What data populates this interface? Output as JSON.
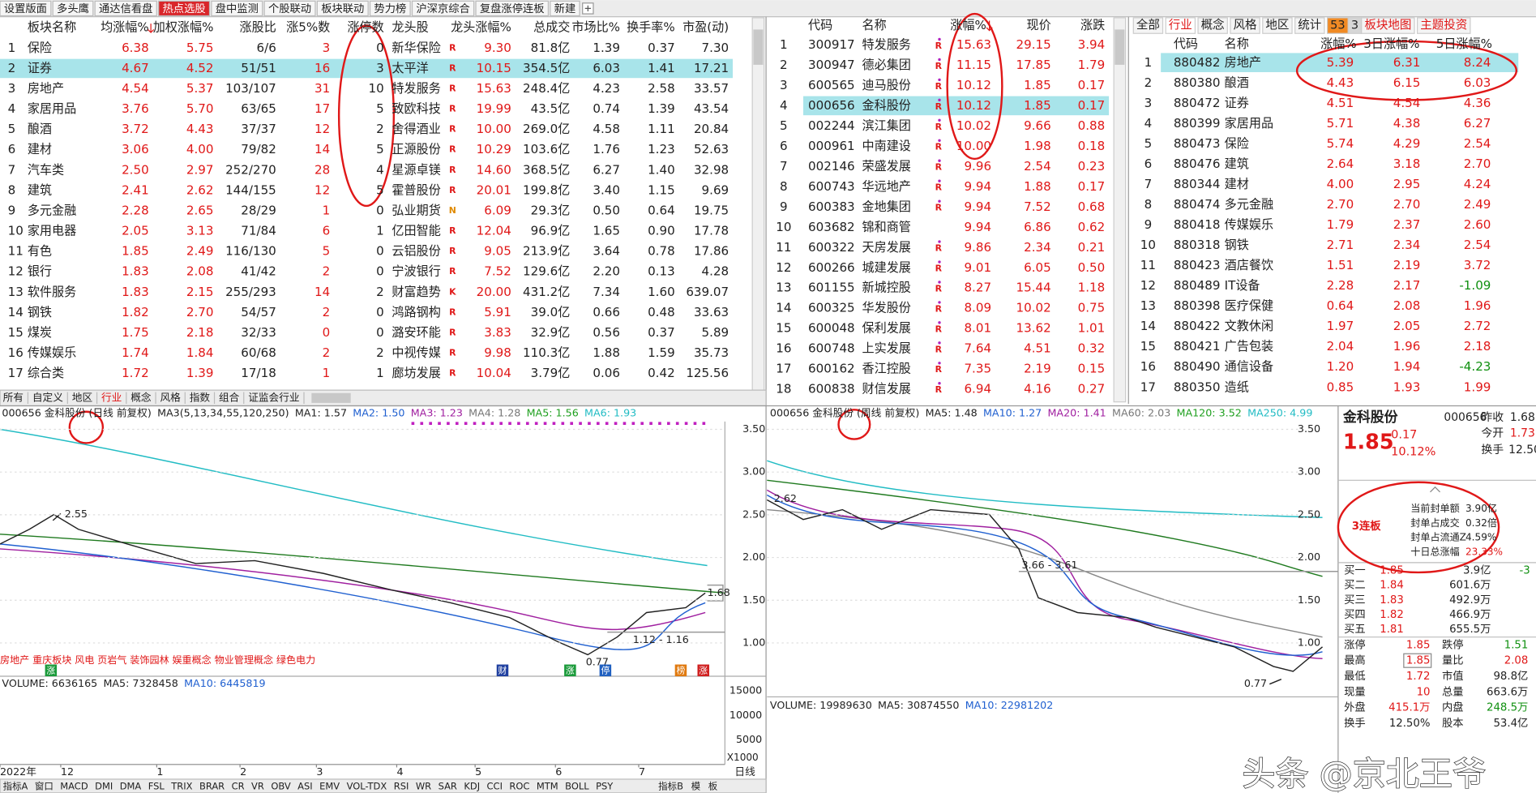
{
  "tabs": [
    {
      "label": "设置版面"
    },
    {
      "label": "多头鹰"
    },
    {
      "label": "通达信看盘"
    },
    {
      "label": "热点选股",
      "active": true
    },
    {
      "label": "盘中监测"
    },
    {
      "label": "个股联动"
    },
    {
      "label": "板块联动"
    },
    {
      "label": "势力榜"
    },
    {
      "label": "沪深京综合"
    },
    {
      "label": "复盘涨停连板"
    },
    {
      "label": "新建"
    }
  ],
  "left_table": {
    "headers": [
      "板块名称",
      "均涨幅%",
      "加权涨幅%",
      "涨股比",
      "涨5%数",
      "涨停数",
      "龙头股",
      "龙头涨幅%",
      "总成交",
      "市场比%",
      "换手率%",
      "市盈(动)"
    ],
    "rows": [
      [
        "1",
        "保险",
        "6.38",
        "5.75",
        "6/6",
        "3",
        "0",
        "新华保险",
        "R",
        "9.30",
        "81.8亿",
        "1.39",
        "0.37",
        "7.30"
      ],
      [
        "2",
        "证券",
        "4.67",
        "4.52",
        "51/51",
        "16",
        "3",
        "太平洋",
        "R",
        "10.15",
        "354.5亿",
        "6.03",
        "1.41",
        "17.21"
      ],
      [
        "3",
        "房地产",
        "4.54",
        "5.37",
        "103/107",
        "31",
        "10",
        "特发服务",
        "R",
        "15.63",
        "248.4亿",
        "4.23",
        "2.58",
        "33.57"
      ],
      [
        "4",
        "家居用品",
        "3.76",
        "5.70",
        "63/65",
        "17",
        "5",
        "致欧科技",
        "R",
        "19.99",
        "43.5亿",
        "0.74",
        "1.39",
        "43.54"
      ],
      [
        "5",
        "酿酒",
        "3.72",
        "4.43",
        "37/37",
        "12",
        "2",
        "舍得酒业",
        "R",
        "10.00",
        "269.0亿",
        "4.58",
        "1.11",
        "20.84"
      ],
      [
        "6",
        "建材",
        "3.06",
        "4.00",
        "79/82",
        "14",
        "5",
        "正源股份",
        "R",
        "10.29",
        "103.6亿",
        "1.76",
        "1.23",
        "52.63"
      ],
      [
        "7",
        "汽车类",
        "2.50",
        "2.97",
        "252/270",
        "28",
        "4",
        "星源卓镁",
        "R",
        "14.60",
        "368.5亿",
        "6.27",
        "1.40",
        "32.98"
      ],
      [
        "8",
        "建筑",
        "2.41",
        "2.62",
        "144/155",
        "12",
        "5",
        "霍普股份",
        "R",
        "20.01",
        "199.8亿",
        "3.40",
        "1.15",
        "9.69"
      ],
      [
        "9",
        "多元金融",
        "2.28",
        "2.65",
        "28/29",
        "1",
        "0",
        "弘业期货",
        "N",
        "6.09",
        "29.3亿",
        "0.50",
        "0.64",
        "19.75"
      ],
      [
        "10",
        "家用电器",
        "2.05",
        "3.13",
        "71/84",
        "6",
        "1",
        "亿田智能",
        "R",
        "12.04",
        "96.9亿",
        "1.65",
        "0.90",
        "17.78"
      ],
      [
        "11",
        "有色",
        "1.85",
        "2.49",
        "116/130",
        "5",
        "0",
        "云铝股份",
        "R",
        "9.05",
        "213.9亿",
        "3.64",
        "0.78",
        "17.86"
      ],
      [
        "12",
        "银行",
        "1.83",
        "2.08",
        "41/42",
        "2",
        "0",
        "宁波银行",
        "R",
        "7.52",
        "129.6亿",
        "2.20",
        "0.13",
        "4.28"
      ],
      [
        "13",
        "软件服务",
        "1.83",
        "2.15",
        "255/293",
        "14",
        "2",
        "财富趋势",
        "K",
        "20.00",
        "431.2亿",
        "7.34",
        "1.60",
        "639.07"
      ],
      [
        "14",
        "钢铁",
        "1.82",
        "2.70",
        "54/57",
        "2",
        "0",
        "鸿路钢构",
        "R",
        "5.91",
        "39.0亿",
        "0.66",
        "0.48",
        "33.63"
      ],
      [
        "15",
        "煤炭",
        "1.75",
        "2.18",
        "32/33",
        "0",
        "0",
        "潞安环能",
        "R",
        "3.83",
        "32.9亿",
        "0.56",
        "0.37",
        "5.89"
      ],
      [
        "16",
        "传媒娱乐",
        "1.74",
        "1.84",
        "60/68",
        "2",
        "2",
        "中视传媒",
        "R",
        "9.98",
        "110.3亿",
        "1.88",
        "1.59",
        "35.73"
      ],
      [
        "17",
        "综合类",
        "1.72",
        "1.39",
        "17/18",
        "1",
        "1",
        "廊坊发展",
        "R",
        "10.04",
        "3.79亿",
        "0.06",
        "0.42",
        "125.56"
      ]
    ]
  },
  "left_tabs": [
    "所有",
    "自定义",
    "地区",
    "行业",
    "概念",
    "风格",
    "指数",
    "组合",
    "证监会行业"
  ],
  "mid_table": {
    "headers": [
      "代码",
      "名称",
      "涨幅%",
      "现价",
      "涨跌"
    ],
    "rows": [
      [
        "1",
        "300917",
        "特发服务",
        "R",
        "15.63",
        "29.15",
        "3.94"
      ],
      [
        "2",
        "300947",
        "德必集团",
        "R",
        "11.15",
        "17.85",
        "1.79"
      ],
      [
        "3",
        "600565",
        "迪马股份",
        "R",
        "10.12",
        "1.85",
        "0.17"
      ],
      [
        "4",
        "000656",
        "金科股份",
        "R",
        "10.12",
        "1.85",
        "0.17"
      ],
      [
        "5",
        "002244",
        "滨江集团",
        "R",
        "10.02",
        "9.66",
        "0.88"
      ],
      [
        "6",
        "000961",
        "中南建设",
        "R",
        "10.00",
        "1.98",
        "0.18"
      ],
      [
        "7",
        "002146",
        "荣盛发展",
        "R",
        "9.96",
        "2.54",
        "0.23"
      ],
      [
        "8",
        "600743",
        "华远地产",
        "R",
        "9.94",
        "1.88",
        "0.17"
      ],
      [
        "9",
        "600383",
        "金地集团",
        "R",
        "9.94",
        "7.52",
        "0.68"
      ],
      [
        "10",
        "603682",
        "锦和商管",
        null,
        "9.94",
        "6.86",
        "0.62"
      ],
      [
        "11",
        "600322",
        "天房发展",
        "R",
        "9.86",
        "2.34",
        "0.21"
      ],
      [
        "12",
        "600266",
        "城建发展",
        "R",
        "9.01",
        "6.05",
        "0.50"
      ],
      [
        "13",
        "601155",
        "新城控股",
        "R",
        "8.27",
        "15.44",
        "1.18"
      ],
      [
        "14",
        "600325",
        "华发股份",
        "R",
        "8.09",
        "10.02",
        "0.75"
      ],
      [
        "15",
        "600048",
        "保利发展",
        "R",
        "8.01",
        "13.62",
        "1.01"
      ],
      [
        "16",
        "600748",
        "上实发展",
        "R",
        "7.64",
        "4.51",
        "0.32"
      ],
      [
        "17",
        "600162",
        "香江控股",
        "R",
        "7.35",
        "2.19",
        "0.15"
      ],
      [
        "18",
        "600838",
        "财信发展",
        "R",
        "6.94",
        "4.16",
        "0.27"
      ]
    ]
  },
  "right_tabs": [
    {
      "label": "全部"
    },
    {
      "label": "行业",
      "active": true
    },
    {
      "label": "概念"
    },
    {
      "label": "风格"
    },
    {
      "label": "地区"
    },
    {
      "label": "统计"
    },
    {
      "label": "53",
      "badge": "#f08a24"
    },
    {
      "label": "3",
      "badge": "#d6d6d6"
    },
    {
      "label": "板块地图",
      "red": true
    },
    {
      "label": "主题投资",
      "red": true
    }
  ],
  "right_table": {
    "headers": [
      "代码",
      "名称",
      "涨幅%",
      "3日涨幅%",
      "5日涨幅%"
    ],
    "rows": [
      [
        "1",
        "880482",
        "房地产",
        "5.39",
        "6.31",
        "8.24"
      ],
      [
        "2",
        "880380",
        "酿酒",
        "4.43",
        "6.15",
        "6.03"
      ],
      [
        "3",
        "880472",
        "证券",
        "4.51",
        "4.54",
        "4.36"
      ],
      [
        "4",
        "880399",
        "家居用品",
        "5.71",
        "4.38",
        "6.27"
      ],
      [
        "5",
        "880473",
        "保险",
        "5.74",
        "4.29",
        "2.54"
      ],
      [
        "6",
        "880476",
        "建筑",
        "2.64",
        "3.18",
        "2.70"
      ],
      [
        "7",
        "880344",
        "建材",
        "4.00",
        "2.95",
        "4.24"
      ],
      [
        "8",
        "880474",
        "多元金融",
        "2.70",
        "2.70",
        "2.49"
      ],
      [
        "9",
        "880418",
        "传媒娱乐",
        "1.79",
        "2.37",
        "2.60"
      ],
      [
        "10",
        "880318",
        "钢铁",
        "2.71",
        "2.34",
        "2.54"
      ],
      [
        "11",
        "880423",
        "酒店餐饮",
        "1.51",
        "2.19",
        "3.72"
      ],
      [
        "12",
        "880489",
        "IT设备",
        "2.28",
        "2.17",
        "-1.09"
      ],
      [
        "13",
        "880398",
        "医疗保健",
        "0.64",
        "2.08",
        "1.96"
      ],
      [
        "14",
        "880422",
        "文教休闲",
        "1.97",
        "2.05",
        "2.72"
      ],
      [
        "15",
        "880421",
        "广告包装",
        "2.04",
        "1.96",
        "2.18"
      ],
      [
        "16",
        "880490",
        "通信设备",
        "1.20",
        "1.94",
        "-4.23"
      ],
      [
        "17",
        "880350",
        "造纸",
        "0.85",
        "1.93",
        "1.99"
      ]
    ]
  },
  "daily_chart": {
    "title": "000656 金科股份 (日线 前复权)",
    "ma_group": "MA3(5,13,34,55,120,250)",
    "ma": [
      {
        "label": "MA1: 1.57",
        "color": "#222222"
      },
      {
        "label": "MA2: 1.50",
        "color": "#2060d0"
      },
      {
        "label": "MA3: 1.23",
        "color": "#a020a0"
      },
      {
        "label": "MA4: 1.28",
        "color": "#777777"
      },
      {
        "label": "MA5: 1.56",
        "color": "#20a020"
      },
      {
        "label": "MA6: 1.93",
        "color": "#22bcc4"
      }
    ],
    "yticks": [
      "3.50",
      "3.00",
      "2.50",
      "2.00",
      "1.50",
      "1.00"
    ],
    "annotations": {
      "high": "2.55",
      "last": "1.68",
      "range": "1.12 - 1.16",
      "low": "0.77"
    },
    "concepts": "房地产 重庆板块 风电 页岩气 装饰园林 娱重概念 物业管理概念 绿色电力",
    "markers": [
      "涨",
      "财",
      "涨",
      "停",
      "榜",
      "涨"
    ],
    "volume": {
      "items": [
        {
          "label": "VOLUME: 6636165",
          "color": "#222222"
        },
        {
          "label": "MA5: 7328458",
          "color": "#222222"
        },
        {
          "label": "MA10: 6445819",
          "color": "#2060d0"
        }
      ],
      "yticks": [
        "15000",
        "10000",
        "5000"
      ],
      "unit": "X1000"
    },
    "xticks": [
      "2022年",
      "12",
      "1",
      "2",
      "3",
      "4",
      "5",
      "6",
      "7"
    ],
    "period_label": "日线"
  },
  "weekly_chart": {
    "title": "000656 金科股份 (周线 前复权)",
    "ma": [
      {
        "label": "MA5: 1.48",
        "color": "#222222"
      },
      {
        "label": "MA10: 1.27",
        "color": "#2060d0"
      },
      {
        "label": "MA20: 1.41",
        "color": "#a020a0"
      },
      {
        "label": "MA60: 2.03",
        "color": "#777777"
      },
      {
        "label": "MA120: 3.52",
        "color": "#20a020"
      },
      {
        "label": "MA250: 4.99",
        "color": "#22bcc4"
      }
    ],
    "yticks": [
      "3.50",
      "3.00",
      "2.50",
      "2.00",
      "1.50",
      "1.00"
    ],
    "annotations": {
      "high": "2.62",
      "range": "3.66 - 3.61",
      "low": "0.77"
    },
    "volume": {
      "items": [
        {
          "label": "VOLUME: 19989630",
          "color": "#222222"
        },
        {
          "label": "MA5: 30874550",
          "color": "#222222"
        },
        {
          "label": "MA10: 22981202",
          "color": "#2060d0"
        }
      ]
    }
  },
  "indicators": [
    "指标A",
    "窗口",
    "MACD",
    "DMI",
    "DMA",
    "FSL",
    "TRIX",
    "BRAR",
    "CR",
    "VR",
    "OBV",
    "ASI",
    "EMV",
    "VOL-TDX",
    "RSI",
    "WR",
    "SAR",
    "KDJ",
    "CCI",
    "ROC",
    "MTM",
    "BOLL",
    "PSY"
  ],
  "indicators_right": [
    "指标B",
    "模",
    "板"
  ],
  "quote": {
    "name": "金科股份",
    "code": "000656",
    "prev_label": "昨收",
    "prev": "1.68",
    "open_label": "今开",
    "open": "1.73",
    "turn_label": "换手",
    "turn": "12.50",
    "price": "1.85",
    "change": "0.17",
    "pct": "10.12%"
  },
  "limit_info": {
    "badge": "3连板",
    "lines": [
      [
        "当前封单额",
        "3.90亿"
      ],
      [
        "封单占成交",
        "0.32倍"
      ],
      [
        "封单占流通Z",
        "4.59%"
      ],
      [
        "十日总涨幅",
        "23.33%"
      ]
    ]
  },
  "order_book": [
    [
      "买一",
      "1.85",
      "3.9亿",
      "-3"
    ],
    [
      "买二",
      "1.84",
      "601.6万"
    ],
    [
      "买三",
      "1.83",
      "492.9万"
    ],
    [
      "买四",
      "1.82",
      "466.9万"
    ],
    [
      "买五",
      "1.81",
      "655.5万"
    ]
  ],
  "stats": [
    [
      "涨停",
      "1.85",
      "跌停",
      "1.51"
    ],
    [
      "最高",
      "1.85",
      "量比",
      "2.08"
    ],
    [
      "最低",
      "1.72",
      "市值",
      "98.8亿"
    ],
    [
      "现量",
      "10",
      "总量",
      "663.6万"
    ],
    [
      "外盘",
      "415.1万",
      "内盘",
      "248.5万"
    ],
    [
      "换手",
      "12.50%",
      "股本",
      "53.4亿"
    ]
  ],
  "watermark": "头条 @京北王爷"
}
